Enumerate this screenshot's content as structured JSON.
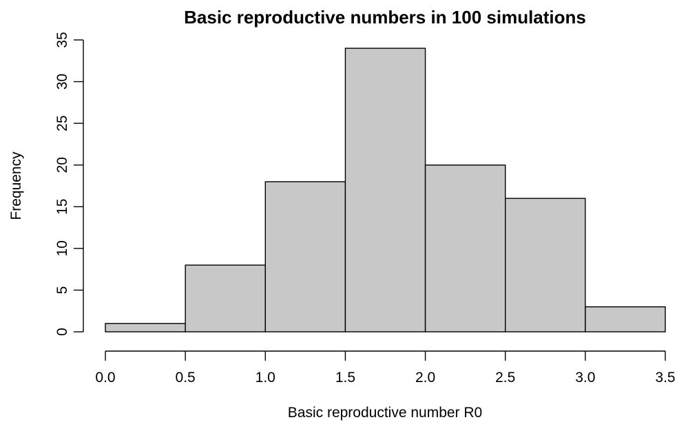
{
  "chart_data": {
    "type": "bar",
    "title": "Basic reproductive numbers in 100 simulations",
    "xlabel": "Basic reproductive number R0",
    "ylabel": "Frequency",
    "bins": [
      {
        "from": 0.0,
        "to": 0.5,
        "count": 1
      },
      {
        "from": 0.5,
        "to": 1.0,
        "count": 8
      },
      {
        "from": 1.0,
        "to": 1.5,
        "count": 18
      },
      {
        "from": 1.5,
        "to": 2.0,
        "count": 34
      },
      {
        "from": 2.0,
        "to": 2.5,
        "count": 20
      },
      {
        "from": 2.5,
        "to": 3.0,
        "count": 16
      },
      {
        "from": 3.0,
        "to": 3.5,
        "count": 3
      }
    ],
    "xlim": [
      0,
      3.5
    ],
    "ylim": [
      0,
      35
    ],
    "x_ticks": [
      "0.0",
      "0.5",
      "1.0",
      "1.5",
      "2.0",
      "2.5",
      "3.0",
      "3.5"
    ],
    "y_ticks": [
      "0",
      "5",
      "10",
      "15",
      "20",
      "25",
      "30",
      "35"
    ],
    "bar_color": "#c8c8c8",
    "grid": false
  }
}
